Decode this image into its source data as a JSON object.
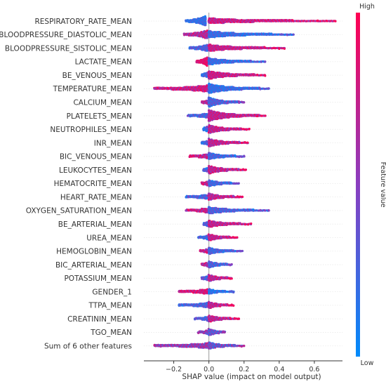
{
  "chart_data": {
    "type": "scatter",
    "subtype": "shap-beeswarm",
    "xlabel": "SHAP value (impact on model output)",
    "xlim": [
      -0.37,
      0.76
    ],
    "xticks": [
      -0.2,
      0.0,
      0.2,
      0.4,
      0.6
    ],
    "tick_labels": [
      "−0.2",
      "0.0",
      "0.2",
      "0.4",
      "0.6"
    ],
    "zero_line": true,
    "colorbar": {
      "label": "Feature value",
      "high_label": "High",
      "low_label": "Low",
      "low_color": "#008bfb",
      "high_color": "#ff0052"
    },
    "features": [
      {
        "name": "RESPIRATORY_RATE_MEAN",
        "neg": {
          "min": -0.13,
          "max": -0.02,
          "hmax": 9,
          "lo": 0.08,
          "hi": 0.3
        },
        "pos": {
          "min": 0.0,
          "max": 0.72,
          "hmax": 3,
          "lo": 0.55,
          "hi": 0.98
        }
      },
      {
        "name": "BLOODPRESSURE_DIASTOLIC_MEAN",
        "neg": {
          "min": -0.14,
          "max": -0.01,
          "hmax": 6,
          "lo": 0.45,
          "hi": 0.9
        },
        "pos": {
          "min": 0.0,
          "max": 0.48,
          "hmax": 4,
          "lo": 0.02,
          "hi": 0.4
        }
      },
      {
        "name": "BLOODPRESSURE_SISTOLIC_MEAN",
        "neg": {
          "min": -0.11,
          "max": -0.01,
          "hmax": 5,
          "lo": 0.1,
          "hi": 0.45
        },
        "pos": {
          "min": 0.0,
          "max": 0.43,
          "hmax": 4,
          "lo": 0.55,
          "hi": 0.95
        }
      },
      {
        "name": "LACTATE_MEAN",
        "neg": {
          "min": -0.07,
          "max": -0.01,
          "hmax": 8,
          "lo": 0.75,
          "hi": 1.0
        },
        "pos": {
          "min": 0.0,
          "max": 0.32,
          "hmax": 4,
          "lo": 0.02,
          "hi": 0.4
        }
      },
      {
        "name": "BE_VENOUS_MEAN",
        "neg": {
          "min": -0.04,
          "max": -0.01,
          "hmax": 4,
          "lo": 0.1,
          "hi": 0.4
        },
        "pos": {
          "min": 0.0,
          "max": 0.32,
          "hmax": 5,
          "lo": 0.55,
          "hi": 0.95
        }
      },
      {
        "name": "TEMPERATURE_MEAN",
        "neg": {
          "min": -0.31,
          "max": -0.01,
          "hmax": 4,
          "lo": 0.55,
          "hi": 1.0
        },
        "pos": {
          "min": 0.0,
          "max": 0.34,
          "hmax": 6,
          "lo": 0.02,
          "hi": 0.4
        }
      },
      {
        "name": "CALCIUM_MEAN",
        "neg": {
          "min": -0.04,
          "max": -0.01,
          "hmax": 3,
          "lo": 0.45,
          "hi": 0.85
        },
        "pos": {
          "min": 0.0,
          "max": 0.2,
          "hmax": 6,
          "lo": 0.05,
          "hi": 0.55
        }
      },
      {
        "name": "PLATELETS_MEAN",
        "neg": {
          "min": -0.12,
          "max": -0.01,
          "hmax": 3,
          "lo": 0.1,
          "hi": 0.45
        },
        "pos": {
          "min": 0.0,
          "max": 0.32,
          "hmax": 7,
          "lo": 0.5,
          "hi": 0.95
        }
      },
      {
        "name": "NEUTROPHILES_MEAN",
        "neg": {
          "min": -0.03,
          "max": -0.01,
          "hmax": 4,
          "lo": 0.05,
          "hi": 0.4
        },
        "pos": {
          "min": 0.0,
          "max": 0.23,
          "hmax": 5,
          "lo": 0.5,
          "hi": 0.95
        }
      },
      {
        "name": "INR_MEAN",
        "neg": {
          "min": -0.04,
          "max": -0.01,
          "hmax": 3,
          "lo": 0.1,
          "hi": 0.4
        },
        "pos": {
          "min": 0.0,
          "max": 0.22,
          "hmax": 5,
          "lo": 0.5,
          "hi": 0.95
        }
      },
      {
        "name": "BIC_VENOUS_MEAN",
        "neg": {
          "min": -0.11,
          "max": -0.01,
          "hmax": 3,
          "lo": 0.5,
          "hi": 0.95
        },
        "pos": {
          "min": 0.0,
          "max": 0.2,
          "hmax": 4,
          "lo": 0.05,
          "hi": 0.45
        }
      },
      {
        "name": "LEUKOCYTES_MEAN",
        "neg": {
          "min": -0.03,
          "max": -0.01,
          "hmax": 3,
          "lo": 0.05,
          "hi": 0.4
        },
        "pos": {
          "min": 0.0,
          "max": 0.21,
          "hmax": 5,
          "lo": 0.5,
          "hi": 0.95
        }
      },
      {
        "name": "HEMATOCRITE_MEAN",
        "neg": {
          "min": -0.04,
          "max": -0.01,
          "hmax": 3,
          "lo": 0.5,
          "hi": 0.95
        },
        "pos": {
          "min": 0.0,
          "max": 0.17,
          "hmax": 4,
          "lo": 0.05,
          "hi": 0.45
        }
      },
      {
        "name": "HEART_RATE_MEAN",
        "neg": {
          "min": -0.13,
          "max": -0.01,
          "hmax": 3,
          "lo": 0.1,
          "hi": 0.45
        },
        "pos": {
          "min": 0.0,
          "max": 0.19,
          "hmax": 4,
          "lo": 0.5,
          "hi": 0.95
        }
      },
      {
        "name": "OXYGEN_SATURATION_MEAN",
        "neg": {
          "min": -0.13,
          "max": -0.01,
          "hmax": 3,
          "lo": 0.5,
          "hi": 0.95
        },
        "pos": {
          "min": 0.0,
          "max": 0.34,
          "hmax": 4,
          "lo": 0.05,
          "hi": 0.5
        }
      },
      {
        "name": "BE_ARTERIAL_MEAN",
        "neg": {
          "min": -0.03,
          "max": -0.01,
          "hmax": 3,
          "lo": 0.1,
          "hi": 0.45
        },
        "pos": {
          "min": 0.0,
          "max": 0.24,
          "hmax": 4,
          "lo": 0.5,
          "hi": 0.95
        }
      },
      {
        "name": "UREA_MEAN",
        "neg": {
          "min": -0.06,
          "max": -0.01,
          "hmax": 3,
          "lo": 0.05,
          "hi": 0.4
        },
        "pos": {
          "min": 0.0,
          "max": 0.16,
          "hmax": 4,
          "lo": 0.5,
          "hi": 0.95
        }
      },
      {
        "name": "HEMOGLOBIN_MEAN",
        "neg": {
          "min": -0.05,
          "max": -0.01,
          "hmax": 3,
          "lo": 0.5,
          "hi": 0.95
        },
        "pos": {
          "min": 0.0,
          "max": 0.19,
          "hmax": 4,
          "lo": 0.05,
          "hi": 0.45
        }
      },
      {
        "name": "BIC_ARTERIAL_MEAN",
        "neg": {
          "min": -0.04,
          "max": -0.01,
          "hmax": 3,
          "lo": 0.45,
          "hi": 0.9
        },
        "pos": {
          "min": 0.0,
          "max": 0.13,
          "hmax": 4,
          "lo": 0.05,
          "hi": 0.5
        }
      },
      {
        "name": "POTASSIUM_MEAN",
        "neg": {
          "min": -0.04,
          "max": -0.01,
          "hmax": 3,
          "lo": 0.1,
          "hi": 0.45
        },
        "pos": {
          "min": 0.0,
          "max": 0.13,
          "hmax": 4,
          "lo": 0.5,
          "hi": 0.95
        }
      },
      {
        "name": "GENDER_1",
        "neg": {
          "min": -0.17,
          "max": -0.01,
          "hmax": 3,
          "lo": 0.6,
          "hi": 1.0
        },
        "pos": {
          "min": 0.0,
          "max": 0.14,
          "hmax": 3,
          "lo": 0.0,
          "hi": 0.3
        }
      },
      {
        "name": "TTPA_MEAN",
        "neg": {
          "min": -0.17,
          "max": -0.01,
          "hmax": 3,
          "lo": 0.1,
          "hi": 0.45
        },
        "pos": {
          "min": 0.0,
          "max": 0.14,
          "hmax": 4,
          "lo": 0.5,
          "hi": 0.95
        }
      },
      {
        "name": "CREATININ_MEAN",
        "neg": {
          "min": -0.08,
          "max": -0.01,
          "hmax": 3,
          "lo": 0.1,
          "hi": 0.45
        },
        "pos": {
          "min": 0.0,
          "max": 0.17,
          "hmax": 4,
          "lo": 0.45,
          "hi": 0.95
        }
      },
      {
        "name": "TGO_MEAN",
        "neg": {
          "min": -0.06,
          "max": -0.01,
          "hmax": 3,
          "lo": 0.3,
          "hi": 0.7
        },
        "pos": {
          "min": 0.0,
          "max": 0.09,
          "hmax": 4,
          "lo": 0.1,
          "hi": 0.6
        }
      },
      {
        "name": "Sum of 6 other features",
        "neg": {
          "min": -0.31,
          "max": -0.01,
          "hmax": 3,
          "lo": 0.3,
          "hi": 0.8
        },
        "pos": {
          "min": 0.0,
          "max": 0.2,
          "hmax": 4,
          "lo": 0.1,
          "hi": 0.7
        }
      }
    ]
  }
}
